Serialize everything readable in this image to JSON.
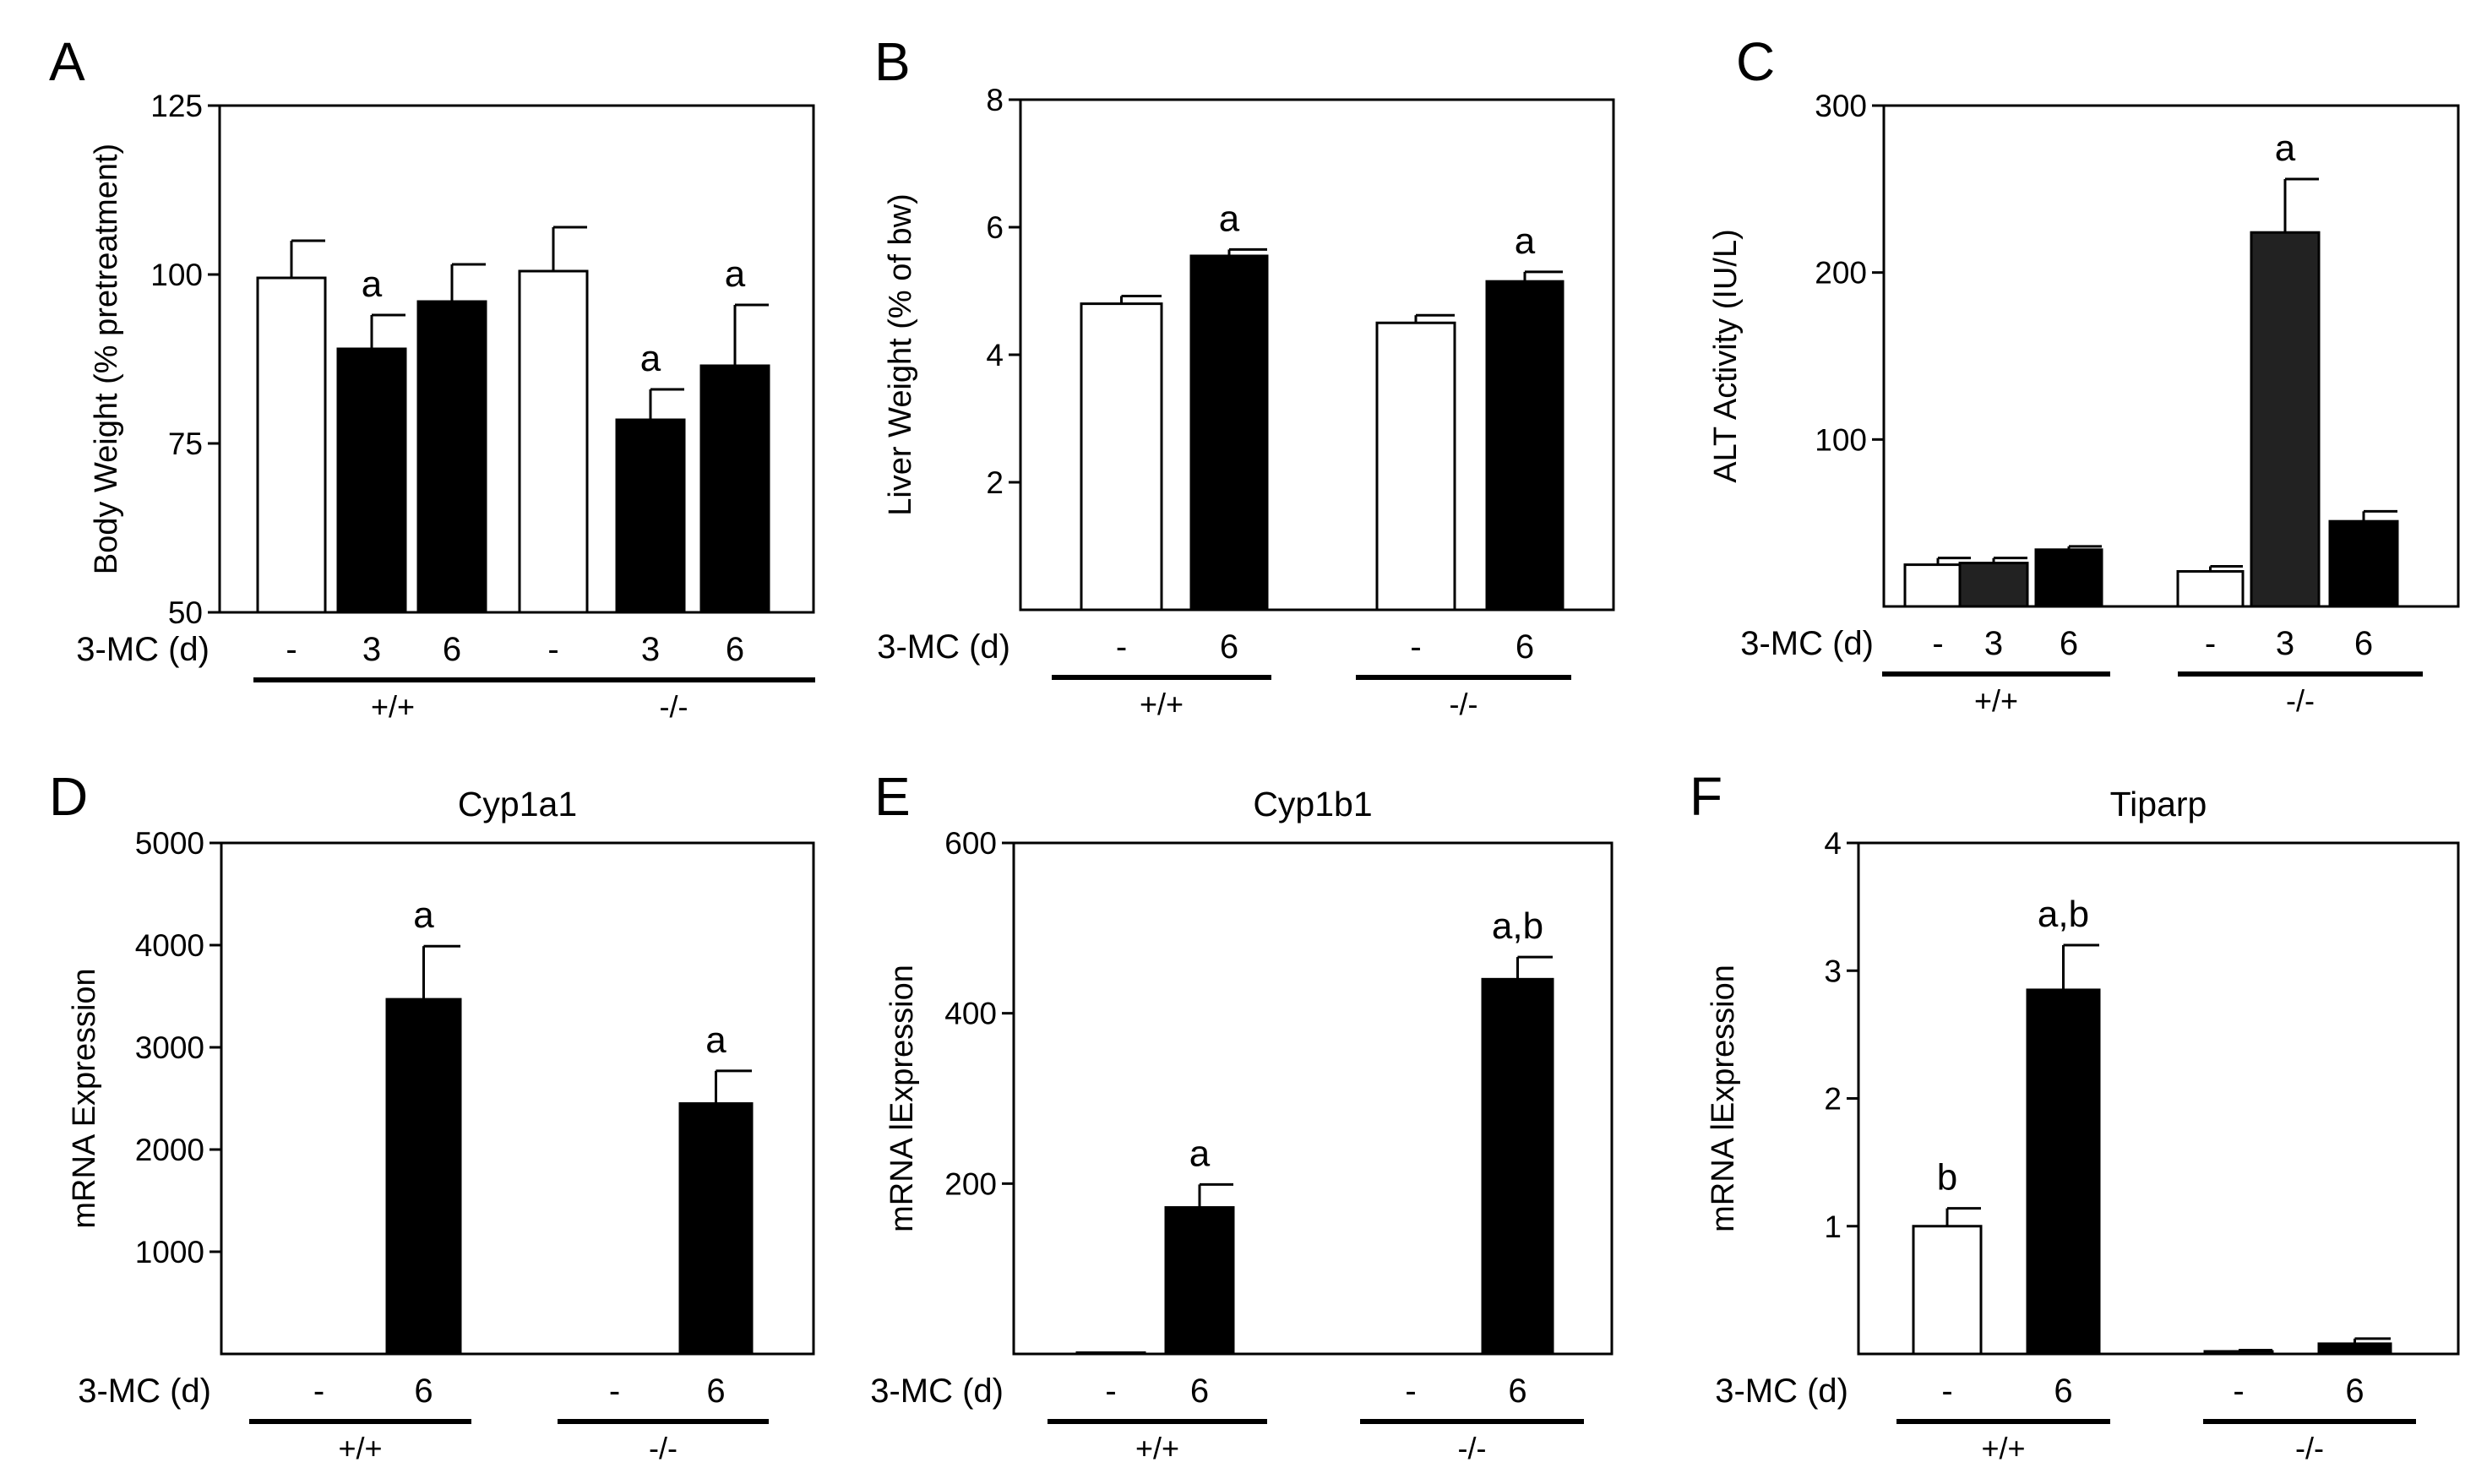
{
  "figure": {
    "panels": [
      {
        "letter": "A",
        "title": "",
        "xlabel_prefix": "3-MC (d)",
        "chart_data": {
          "type": "bar",
          "ylabel": "Body Weight (% pretreatment)",
          "ylim": [
            50,
            125
          ],
          "yticks": [
            50,
            75,
            100,
            125
          ],
          "groups": [
            {
              "label": "+/+",
              "bars": [
                {
                  "cat": "-",
                  "value": 99.5,
                  "err": 5.5,
                  "fill": "white",
                  "sig": ""
                },
                {
                  "cat": "3",
                  "value": 89,
                  "err": 5,
                  "fill": "black",
                  "sig": "a"
                },
                {
                  "cat": "6",
                  "value": 96,
                  "err": 5.5,
                  "fill": "black",
                  "sig": ""
                }
              ]
            },
            {
              "label": "-/-",
              "bars": [
                {
                  "cat": "-",
                  "value": 100.5,
                  "err": 6.5,
                  "fill": "white",
                  "sig": ""
                },
                {
                  "cat": "3",
                  "value": 78.5,
                  "err": 4.5,
                  "fill": "black",
                  "sig": "a"
                },
                {
                  "cat": "6",
                  "value": 86.5,
                  "err": 9,
                  "fill": "black",
                  "sig": "a"
                }
              ]
            }
          ]
        }
      },
      {
        "letter": "B",
        "title": "",
        "xlabel_prefix": "3-MC (d)",
        "chart_data": {
          "type": "bar",
          "ylabel": "Liver Weight (% of bw)",
          "ylim": [
            0,
            8
          ],
          "yticks": [
            2,
            4,
            6,
            8
          ],
          "groups": [
            {
              "label": "+/+",
              "bars": [
                {
                  "cat": "-",
                  "value": 4.8,
                  "err": 0.12,
                  "fill": "white",
                  "sig": ""
                },
                {
                  "cat": "6",
                  "value": 5.55,
                  "err": 0.1,
                  "fill": "black",
                  "sig": "a"
                }
              ]
            },
            {
              "label": "-/-",
              "bars": [
                {
                  "cat": "-",
                  "value": 4.5,
                  "err": 0.12,
                  "fill": "white",
                  "sig": ""
                },
                {
                  "cat": "6",
                  "value": 5.15,
                  "err": 0.15,
                  "fill": "black",
                  "sig": "a"
                }
              ]
            }
          ]
        }
      },
      {
        "letter": "C",
        "title": "",
        "xlabel_prefix": "3-MC (d)",
        "chart_data": {
          "type": "bar",
          "ylabel": "ALT Activity (IU/L)",
          "ylim": [
            0,
            300
          ],
          "yticks": [
            100,
            200,
            300
          ],
          "groups": [
            {
              "label": "+/+",
              "bars": [
                {
                  "cat": "-",
                  "value": 25,
                  "err": 4,
                  "fill": "white",
                  "sig": ""
                },
                {
                  "cat": "3",
                  "value": 26,
                  "err": 3,
                  "fill": "#222222",
                  "sig": ""
                },
                {
                  "cat": "6",
                  "value": 34,
                  "err": 2,
                  "fill": "black",
                  "sig": ""
                }
              ]
            },
            {
              "label": "-/-",
              "bars": [
                {
                  "cat": "-",
                  "value": 21,
                  "err": 3,
                  "fill": "white",
                  "sig": ""
                },
                {
                  "cat": "3",
                  "value": 224,
                  "err": 32,
                  "fill": "#222222",
                  "sig": "a"
                },
                {
                  "cat": "6",
                  "value": 51,
                  "err": 6,
                  "fill": "black",
                  "sig": ""
                }
              ]
            }
          ]
        }
      },
      {
        "letter": "D",
        "title": "Cyp1a1",
        "xlabel_prefix": "3-MC (d)",
        "chart_data": {
          "type": "bar",
          "ylabel": "mRNA Expression",
          "ylim": [
            0,
            5000
          ],
          "yticks": [
            1000,
            2000,
            3000,
            4000,
            5000
          ],
          "groups": [
            {
              "label": "+/+",
              "bars": [
                {
                  "cat": "-",
                  "value": 0,
                  "err": 0,
                  "fill": "white",
                  "sig": ""
                },
                {
                  "cat": "6",
                  "value": 3470,
                  "err": 520,
                  "fill": "black",
                  "sig": "a"
                }
              ]
            },
            {
              "label": "-/-",
              "bars": [
                {
                  "cat": "-",
                  "value": 0,
                  "err": 0,
                  "fill": "white",
                  "sig": ""
                },
                {
                  "cat": "6",
                  "value": 2450,
                  "err": 320,
                  "fill": "black",
                  "sig": "a"
                }
              ]
            }
          ]
        }
      },
      {
        "letter": "E",
        "title": "Cyp1b1",
        "xlabel_prefix": "3-MC (d)",
        "chart_data": {
          "type": "bar",
          "ylabel": "mRNA lExpression",
          "ylim": [
            0,
            600
          ],
          "yticks": [
            200,
            400,
            600
          ],
          "groups": [
            {
              "label": "+/+",
              "bars": [
                {
                  "cat": "-",
                  "value": 1.5,
                  "err": 0,
                  "fill": "white",
                  "sig": ""
                },
                {
                  "cat": "6",
                  "value": 172,
                  "err": 27,
                  "fill": "black",
                  "sig": "a"
                }
              ]
            },
            {
              "label": "-/-",
              "bars": [
                {
                  "cat": "-",
                  "value": 0,
                  "err": 0,
                  "fill": "white",
                  "sig": ""
                },
                {
                  "cat": "6",
                  "value": 440,
                  "err": 26,
                  "fill": "black",
                  "sig": "a,b"
                }
              ]
            }
          ]
        }
      },
      {
        "letter": "F",
        "title": "Tiparp",
        "xlabel_prefix": "3-MC (d)",
        "chart_data": {
          "type": "bar",
          "ylabel": "mRNA lExpression",
          "ylim": [
            0,
            4
          ],
          "yticks": [
            1,
            2,
            3,
            4
          ],
          "groups": [
            {
              "label": "+/+",
              "bars": [
                {
                  "cat": "-",
                  "value": 1.0,
                  "err": 0.14,
                  "fill": "white",
                  "sig": "b"
                },
                {
                  "cat": "6",
                  "value": 2.85,
                  "err": 0.35,
                  "fill": "black",
                  "sig": "a,b"
                }
              ]
            },
            {
              "label": "-/-",
              "bars": [
                {
                  "cat": "-",
                  "value": 0.02,
                  "err": 0.01,
                  "fill": "white",
                  "sig": ""
                },
                {
                  "cat": "6",
                  "value": 0.08,
                  "err": 0.04,
                  "fill": "black",
                  "sig": ""
                }
              ]
            }
          ]
        }
      }
    ]
  }
}
